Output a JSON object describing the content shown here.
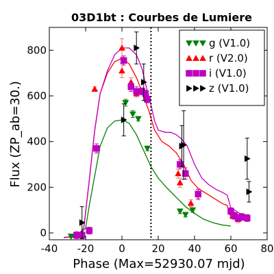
{
  "chart_data": {
    "type": "scatter",
    "title": "03D1bt : Courbes de Lumiere",
    "xlabel": "Phase (Max=52930.07 mjd)",
    "ylabel": "Flux (ZP_ab=30.)",
    "xlim": [
      -40,
      80
    ],
    "ylim": [
      -30,
      900
    ],
    "x_ticks": [
      -40,
      -20,
      0,
      20,
      40,
      60,
      80
    ],
    "y_ticks": [
      0,
      200,
      400,
      600,
      800
    ],
    "x_tick_labels": [
      "-40",
      "-20",
      "0",
      "20",
      "40",
      "60",
      "80"
    ],
    "y_tick_labels": [
      "0",
      "200",
      "400",
      "600",
      "800"
    ],
    "grid": false,
    "legend_position": "top-right",
    "vline_phase": 16,
    "series": [
      {
        "name": "g (V1.0)",
        "color": "#008000",
        "marker": "triangle-down",
        "points": [
          {
            "x": -28,
            "y": -15,
            "err": 5
          },
          {
            "x": -25,
            "y": -10,
            "err": 5
          },
          {
            "x": 2,
            "y": 570,
            "err": 15
          },
          {
            "x": 6,
            "y": 520,
            "err": 15
          },
          {
            "x": 9,
            "y": 500,
            "err": 10
          },
          {
            "x": 14,
            "y": 370,
            "err": 10
          },
          {
            "x": 32,
            "y": 95,
            "err": 10
          },
          {
            "x": 35,
            "y": 80,
            "err": 10
          },
          {
            "x": 39,
            "y": 100,
            "err": 10
          }
        ],
        "curve": [
          [
            -32,
            -20
          ],
          [
            -25,
            -15
          ],
          [
            -20,
            20
          ],
          [
            -18,
            120
          ],
          [
            -15,
            250
          ],
          [
            -12,
            380
          ],
          [
            -8,
            460
          ],
          [
            -4,
            490
          ],
          [
            0,
            495
          ],
          [
            4,
            480
          ],
          [
            8,
            430
          ],
          [
            12,
            360
          ],
          [
            16,
            290
          ],
          [
            20,
            240
          ],
          [
            25,
            195
          ],
          [
            30,
            155
          ],
          [
            35,
            115
          ],
          [
            40,
            85
          ],
          [
            45,
            60
          ],
          [
            50,
            45
          ],
          [
            55,
            35
          ],
          [
            60,
            30
          ]
        ]
      },
      {
        "name": "r (V2.0)",
        "color": "#ff0000",
        "marker": "triangle-up",
        "points": [
          {
            "x": -15,
            "y": 630,
            "err": 10
          },
          {
            "x": 0,
            "y": 810,
            "err": 40
          },
          {
            "x": 0,
            "y": 710,
            "err": 30
          },
          {
            "x": 5,
            "y": 660,
            "err": 20
          },
          {
            "x": 8,
            "y": 610,
            "err": 15
          },
          {
            "x": 31,
            "y": 260,
            "err": 20
          },
          {
            "x": 32,
            "y": 220,
            "err": 20
          },
          {
            "x": 38,
            "y": 130,
            "err": 15
          },
          {
            "x": 42,
            "y": 170,
            "err": 25
          },
          {
            "x": 61,
            "y": 75,
            "err": 15
          },
          {
            "x": 64,
            "y": 60,
            "err": 15
          }
        ],
        "curve": [
          [
            -32,
            -20
          ],
          [
            -25,
            -15
          ],
          [
            -21,
            20
          ],
          [
            -18,
            230
          ],
          [
            -15,
            450
          ],
          [
            -12,
            610
          ],
          [
            -8,
            700
          ],
          [
            -4,
            750
          ],
          [
            0,
            765
          ],
          [
            4,
            740
          ],
          [
            8,
            680
          ],
          [
            12,
            600
          ],
          [
            15,
            530
          ],
          [
            18,
            450
          ],
          [
            22,
            400
          ],
          [
            26,
            380
          ],
          [
            30,
            350
          ],
          [
            34,
            300
          ],
          [
            38,
            230
          ],
          [
            42,
            195
          ],
          [
            46,
            175
          ],
          [
            50,
            155
          ],
          [
            55,
            130
          ],
          [
            58,
            120
          ],
          [
            60,
            70
          ],
          [
            65,
            65
          ],
          [
            70,
            65
          ]
        ]
      },
      {
        "name": "i (V1.0)",
        "color": "#bf00bf",
        "marker": "square",
        "points": [
          {
            "x": -25,
            "y": -10,
            "err": 15
          },
          {
            "x": -22,
            "y": -10,
            "err": 15
          },
          {
            "x": -18,
            "y": 10,
            "err": 15
          },
          {
            "x": -14,
            "y": 370,
            "err": 20
          },
          {
            "x": 1,
            "y": 755,
            "err": 20
          },
          {
            "x": 5,
            "y": 640,
            "err": 20
          },
          {
            "x": 8,
            "y": 620,
            "err": 20
          },
          {
            "x": 11,
            "y": 620,
            "err": 15
          },
          {
            "x": 13,
            "y": 610,
            "err": 15
          },
          {
            "x": 14,
            "y": 585,
            "err": 15
          },
          {
            "x": 32,
            "y": 300,
            "err": 20
          },
          {
            "x": 35,
            "y": 260,
            "err": 25
          },
          {
            "x": 42,
            "y": 170,
            "err": 20
          },
          {
            "x": 60,
            "y": 95,
            "err": 15
          },
          {
            "x": 62,
            "y": 75,
            "err": 15
          },
          {
            "x": 64,
            "y": 65,
            "err": 15
          },
          {
            "x": 66,
            "y": 70,
            "err": 15
          },
          {
            "x": 69,
            "y": 65,
            "err": 15
          }
        ],
        "curve": [
          [
            -32,
            -20
          ],
          [
            -25,
            -15
          ],
          [
            -21,
            20
          ],
          [
            -18,
            230
          ],
          [
            -15,
            450
          ],
          [
            -12,
            610
          ],
          [
            -8,
            710
          ],
          [
            -4,
            780
          ],
          [
            0,
            810
          ],
          [
            4,
            810
          ],
          [
            8,
            780
          ],
          [
            11,
            720
          ],
          [
            14,
            620
          ],
          [
            16,
            560
          ],
          [
            18,
            490
          ],
          [
            20,
            450
          ],
          [
            24,
            440
          ],
          [
            27,
            440
          ],
          [
            30,
            430
          ],
          [
            33,
            410
          ],
          [
            36,
            380
          ],
          [
            40,
            300
          ],
          [
            44,
            240
          ],
          [
            48,
            210
          ],
          [
            52,
            190
          ],
          [
            56,
            175
          ],
          [
            58,
            165
          ],
          [
            60,
            110
          ],
          [
            65,
            85
          ],
          [
            70,
            70
          ]
        ]
      },
      {
        "name": "z (V1.0)",
        "color": "#000000",
        "marker": "triangle-right",
        "points": [
          {
            "x": -22,
            "y": 45,
            "err": 70
          },
          {
            "x": 1,
            "y": 495,
            "err": 70
          },
          {
            "x": 8,
            "y": 810,
            "err": 70
          },
          {
            "x": 12,
            "y": 660,
            "err": 80
          },
          {
            "x": 33,
            "y": 380,
            "err": 90
          },
          {
            "x": 34,
            "y": 385,
            "err": 150
          },
          {
            "x": 69,
            "y": 325,
            "err": 90
          },
          {
            "x": 70,
            "y": 180,
            "err": 45
          }
        ],
        "curve": []
      }
    ]
  }
}
